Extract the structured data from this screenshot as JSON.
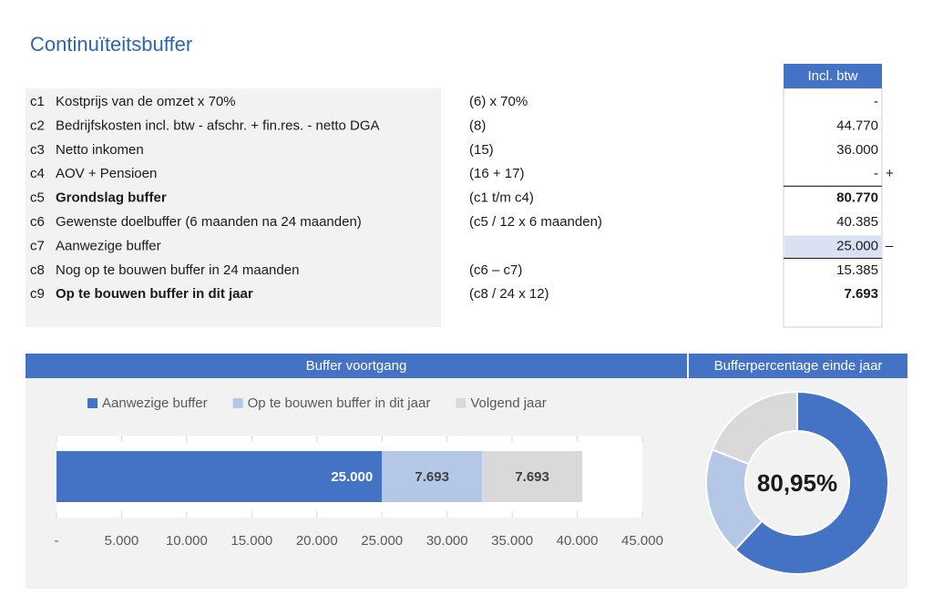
{
  "title": "Continuïteitsbuffer",
  "table": {
    "header": "Incl. btw",
    "rows": [
      {
        "code": "c1",
        "label": "Kostprijs van de omzet x 70%",
        "formula": "(6) x 70%",
        "value": "-"
      },
      {
        "code": "c2",
        "label": "Bedrijfskosten incl. btw - afschr. + fin.res. - netto DGA",
        "formula": "(8)",
        "value": "44.770"
      },
      {
        "code": "c3",
        "label": "Netto inkomen",
        "formula": "(15)",
        "value": "36.000"
      },
      {
        "code": "c4",
        "label": "AOV + Pensioen",
        "formula": "(16 + 17)",
        "value": "-",
        "op": "+"
      },
      {
        "code": "c5",
        "label": "Grondslag buffer",
        "formula": "(c1 t/m c4)",
        "value": "80.770",
        "bold": true
      },
      {
        "code": "c6",
        "label": "Gewenste doelbuffer (6 maanden na 24 maanden)",
        "formula": "(c5 / 12 x 6 maanden)",
        "value": "40.385"
      },
      {
        "code": "c7",
        "label": "Aanwezige buffer",
        "value": "25.000",
        "op": "–",
        "highlight": true
      },
      {
        "code": "c8",
        "label": "Nog op te bouwen buffer in 24 maanden",
        "formula": "(c6 – c7)",
        "value": "15.385"
      },
      {
        "code": "c9",
        "label": "Op te bouwen buffer in dit jaar",
        "formula": "(c8 / 24 x 12)",
        "value": "7.693",
        "bold": true
      }
    ]
  },
  "chart_data": [
    {
      "type": "stacked-bar",
      "title": "Buffer voortgang",
      "series": [
        {
          "name": "Aanwezige buffer",
          "color": "#4472c4",
          "values": [
            25000
          ],
          "value_labels": [
            "25.000"
          ]
        },
        {
          "name": "Op te bouwen buffer in dit jaar",
          "color": "#b4c7e7",
          "values": [
            7693
          ],
          "value_labels": [
            "7.693"
          ]
        },
        {
          "name": "Volgend jaar",
          "color": "#d9d9d9",
          "values": [
            7693
          ],
          "value_labels": [
            "7.693"
          ]
        }
      ],
      "xlim": [
        0,
        45000
      ],
      "xticks": [
        {
          "value": 0,
          "label": "-"
        },
        {
          "value": 5000,
          "label": "5.000"
        },
        {
          "value": 10000,
          "label": "10.000"
        },
        {
          "value": 15000,
          "label": "15.000"
        },
        {
          "value": 20000,
          "label": "20.000"
        },
        {
          "value": 25000,
          "label": "25.000"
        },
        {
          "value": 30000,
          "label": "30.000"
        },
        {
          "value": 35000,
          "label": "35.000"
        },
        {
          "value": 40000,
          "label": "40.000"
        },
        {
          "value": 45000,
          "label": "45.000"
        }
      ],
      "legend": "top"
    },
    {
      "type": "donut",
      "title": "Bufferpercentage einde jaar",
      "center_label": "80,95%",
      "values": [
        25000,
        7693,
        7693
      ],
      "colors": [
        "#4472c4",
        "#b4c7e7",
        "#d9d9d9"
      ]
    }
  ]
}
